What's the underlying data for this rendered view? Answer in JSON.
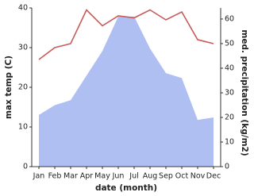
{
  "chart_data": {
    "type": "line",
    "x_label": "date (month)",
    "y_label": "max temp (C)",
    "y2_label": "med. precipitation (kg/m2)",
    "categories": [
      "Jan",
      "Feb",
      "Mar",
      "Apr",
      "May",
      "Jun",
      "Jul",
      "Aug",
      "Sep",
      "Oct",
      "Nov",
      "Dec"
    ],
    "series": [
      {
        "name": "med. precipitation",
        "type": "area",
        "axis": "y2",
        "color": "#b0bff2",
        "values": [
          21,
          25,
          27,
          37,
          47,
          61,
          61,
          48,
          38,
          36,
          19,
          20
        ]
      },
      {
        "name": "max temp",
        "type": "line",
        "color": "#c85a5a",
        "values": [
          27,
          30,
          31,
          39.5,
          35.5,
          38,
          37.5,
          39.5,
          37,
          39,
          32,
          31
        ]
      }
    ],
    "ylim": [
      0,
      40
    ],
    "yticks": [
      0,
      10,
      20,
      30,
      40
    ],
    "y2lim": [
      0,
      64.5
    ],
    "y2ticks": [
      0,
      10,
      20,
      30,
      40,
      50,
      60
    ]
  }
}
